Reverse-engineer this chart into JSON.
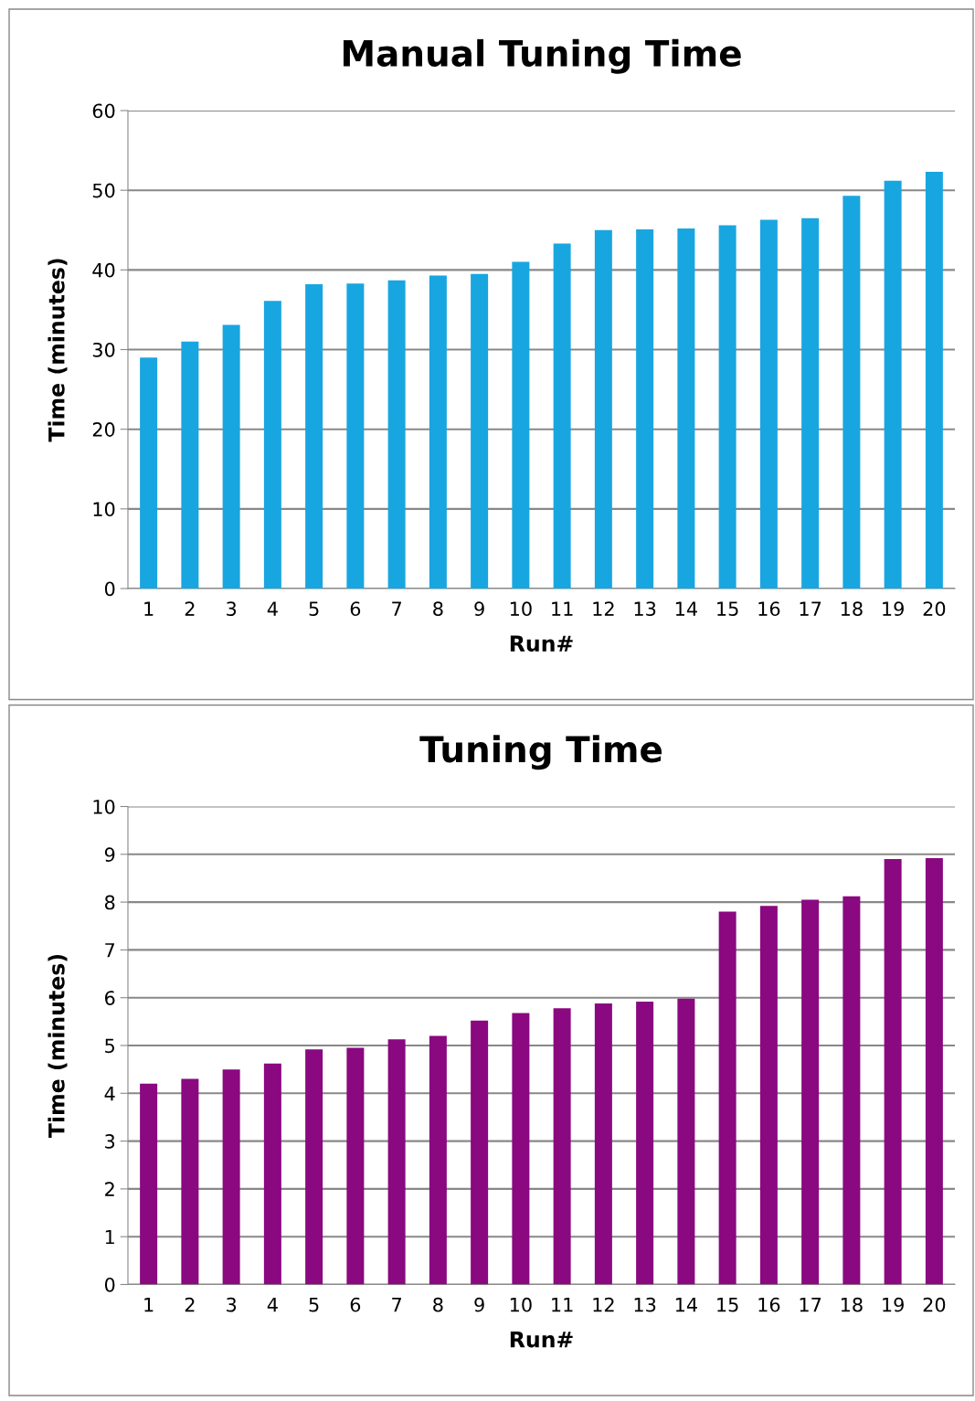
{
  "chart_data": [
    {
      "type": "bar",
      "title": "Manual Tuning Time",
      "xlabel": "Run#",
      "ylabel": "Time (minutes)",
      "categories": [
        "1",
        "2",
        "3",
        "4",
        "5",
        "6",
        "7",
        "8",
        "9",
        "10",
        "11",
        "12",
        "13",
        "14",
        "15",
        "16",
        "17",
        "18",
        "19",
        "20"
      ],
      "values": [
        29,
        31,
        33.1,
        36.1,
        38.2,
        38.3,
        38.7,
        39.3,
        39.5,
        41,
        43.3,
        45,
        45.1,
        45.2,
        45.6,
        46.3,
        46.5,
        49.3,
        51.2,
        52.3
      ],
      "color": "#18a6e0",
      "ylim": [
        0,
        60
      ],
      "yticks": [
        0,
        10,
        20,
        30,
        40,
        50,
        60
      ],
      "grid": "y",
      "legend": false
    },
    {
      "type": "bar",
      "title": "Tuning Time",
      "xlabel": "Run#",
      "ylabel": "Time (minutes)",
      "categories": [
        "1",
        "2",
        "3",
        "4",
        "5",
        "6",
        "7",
        "8",
        "9",
        "10",
        "11",
        "12",
        "13",
        "14",
        "15",
        "16",
        "17",
        "18",
        "19",
        "20"
      ],
      "values": [
        4.2,
        4.3,
        4.5,
        4.62,
        4.92,
        4.95,
        5.13,
        5.2,
        5.52,
        5.68,
        5.78,
        5.88,
        5.92,
        5.98,
        7.8,
        7.92,
        8.05,
        8.12,
        8.9,
        8.92
      ],
      "color": "#8a0880",
      "ylim": [
        0,
        10
      ],
      "yticks": [
        0,
        1,
        2,
        3,
        4,
        5,
        6,
        7,
        8,
        9,
        10
      ],
      "grid": "y",
      "legend": false
    }
  ]
}
